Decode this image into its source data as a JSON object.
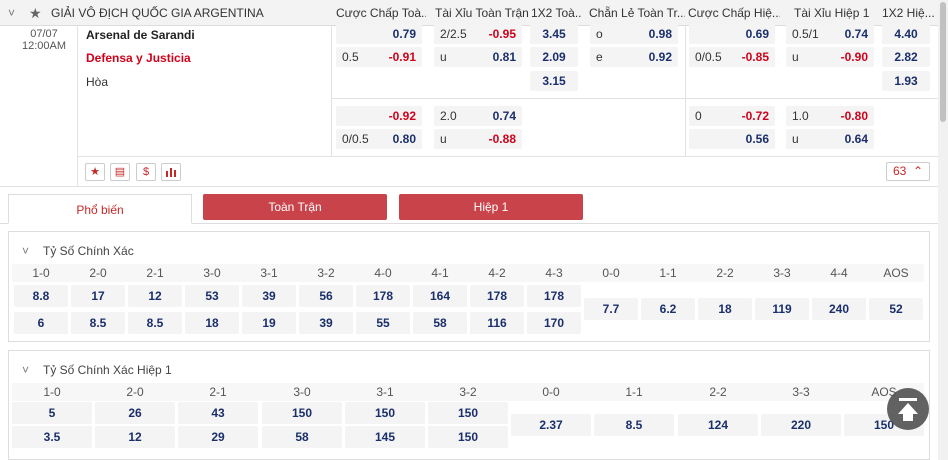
{
  "header": {
    "league": "GIẢI VÔ ĐỊCH QUỐC GIA ARGENTINA",
    "cols": [
      "Cược Chấp Toà...",
      "Tài Xỉu Toàn Trận",
      "1X2 Toà...",
      "Chẵn Lẻ Toàn Tr...",
      "Cược Chấp Hiệ...",
      "Tài Xỉu Hiệp 1",
      "1X2 Hiệ..."
    ]
  },
  "match": {
    "date": "07/07",
    "time": "12:00AM",
    "home": "Arsenal de Sarandi",
    "away": "Defensa y Justicia",
    "draw": "Hòa",
    "more_count": "63"
  },
  "odds": {
    "row1": {
      "ft_hdp_home": "0.79",
      "ft_ou_line": "2/2.5",
      "ft_ou_over": "-0.95",
      "ft_1x2_home": "3.45",
      "oe_odd_label": "o",
      "oe_odd": "0.98",
      "h1_hdp_home": "0.69",
      "h1_ou_line": "0.5/1",
      "h1_ou_over": "0.74",
      "h1_1x2_home": "4.40"
    },
    "row2": {
      "ft_hdp_line": "0.5",
      "ft_hdp_away": "-0.91",
      "ft_ou_under_label": "u",
      "ft_ou_under": "0.81",
      "ft_1x2_away": "2.09",
      "oe_even_label": "e",
      "oe_even": "0.92",
      "h1_hdp_line": "0/0.5",
      "h1_hdp_away": "-0.85",
      "h1_ou_under_label": "u",
      "h1_ou_under": "-0.90",
      "h1_1x2_away": "2.82"
    },
    "row3": {
      "ft_1x2_draw": "3.15",
      "h1_1x2_draw": "1.93"
    },
    "alt1": {
      "ft_hdp_home": "-0.92",
      "ft_ou_line": "2.0",
      "ft_ou_over": "0.74",
      "h1_hdp_line": "0",
      "h1_hdp_home": "-0.72",
      "h1_ou_line": "1.0",
      "h1_ou_over": "-0.80"
    },
    "alt2": {
      "ft_hdp_line": "0/0.5",
      "ft_hdp_away": "0.80",
      "ft_ou_under_label": "u",
      "ft_ou_under": "-0.88",
      "h1_hdp_away": "0.56",
      "h1_ou_under_label": "u",
      "h1_ou_under": "0.64"
    }
  },
  "icons": {
    "star": "★",
    "stats": "▤",
    "money": "$",
    "chart": "📊",
    "chevron": "^"
  },
  "tabs": {
    "popular": "Phổ biến",
    "full": "Toàn Trận",
    "half": "Hiệp 1"
  },
  "cs_full": {
    "title": "Tỷ Số Chính Xác",
    "headers": [
      "1-0",
      "2-0",
      "2-1",
      "3-0",
      "3-1",
      "3-2",
      "4-0",
      "4-1",
      "4-2",
      "4-3",
      "0-0",
      "1-1",
      "2-2",
      "3-3",
      "4-4",
      "AOS"
    ],
    "home": [
      "8.8",
      "17",
      "12",
      "53",
      "39",
      "56",
      "178",
      "164",
      "178",
      "178"
    ],
    "away": [
      "6",
      "8.5",
      "8.5",
      "18",
      "19",
      "39",
      "55",
      "58",
      "116",
      "170"
    ],
    "draws": [
      "7.7",
      "6.2",
      "18",
      "119",
      "240",
      "52"
    ]
  },
  "cs_half": {
    "title": "Tỷ Số Chính Xác Hiệp 1",
    "headers": [
      "1-0",
      "2-0",
      "2-1",
      "3-0",
      "3-1",
      "3-2",
      "0-0",
      "1-1",
      "2-2",
      "3-3",
      "AOS"
    ],
    "home": [
      "5",
      "26",
      "43",
      "150",
      "150",
      "150"
    ],
    "away": [
      "3.5",
      "12",
      "29",
      "58",
      "145",
      "150"
    ],
    "draws": [
      "2.37",
      "8.5",
      "124",
      "220",
      "150"
    ]
  },
  "colors": {
    "red_tab": "#c9434a",
    "odds_blue": "#1a2f6b",
    "odds_red": "#d0021b"
  }
}
